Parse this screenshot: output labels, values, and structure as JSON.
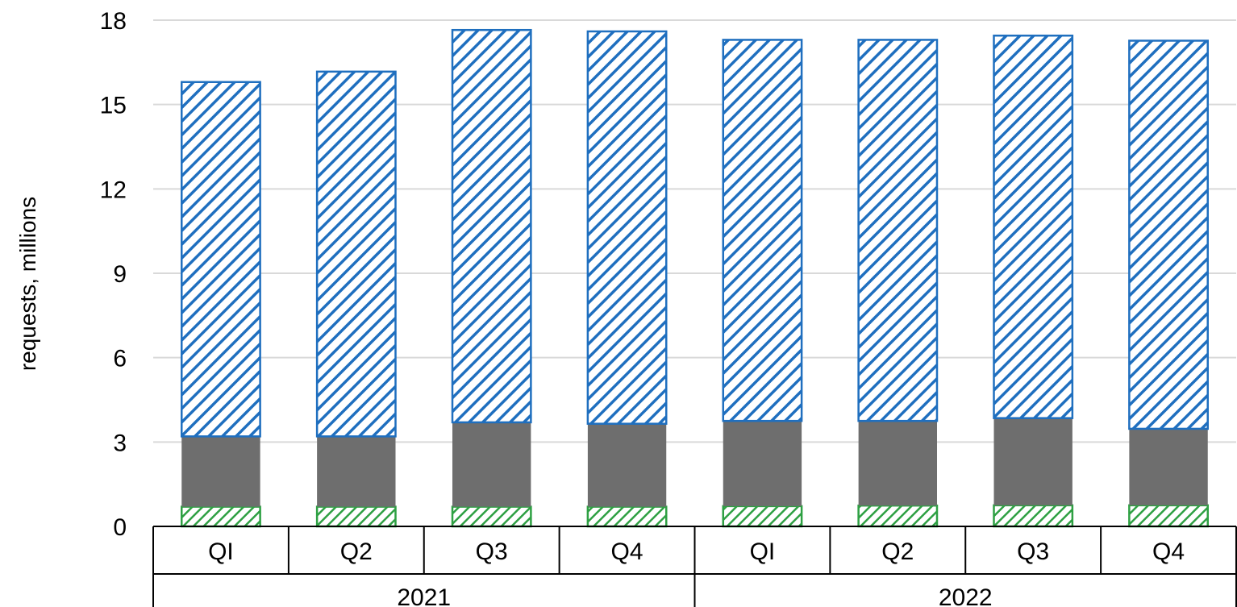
{
  "chart_data": {
    "type": "bar",
    "stacked": true,
    "ylabel": "requests, millions",
    "ylim": [
      0,
      18
    ],
    "yticks": [
      "0",
      "3",
      "6",
      "9",
      "12",
      "15",
      "18"
    ],
    "grid": true,
    "legend": "none",
    "categories": [
      "Q1",
      "Q2",
      "Q3",
      "Q4",
      "Q1",
      "Q2",
      "Q3",
      "Q4"
    ],
    "category_labels": [
      "QI",
      "Q2",
      "Q3",
      "Q4",
      "QI",
      "Q2",
      "Q3",
      "Q4"
    ],
    "groups": [
      {
        "label": "2021",
        "count": 4
      },
      {
        "label": "2022",
        "count": 4
      }
    ],
    "series": [
      {
        "values": [
          0.7,
          0.7,
          0.7,
          0.7,
          0.72,
          0.74,
          0.75,
          0.75
        ],
        "color": "#2ea043",
        "pattern": "hatch"
      },
      {
        "values": [
          2.5,
          2.5,
          3.0,
          2.95,
          3.03,
          3.01,
          3.1,
          2.72
        ],
        "color": "#6e6e6e",
        "pattern": "solid"
      },
      {
        "values": [
          12.6,
          12.97,
          13.95,
          13.95,
          13.55,
          13.55,
          13.6,
          13.8
        ],
        "color": "#1f6fbf",
        "pattern": "hatch"
      }
    ]
  }
}
